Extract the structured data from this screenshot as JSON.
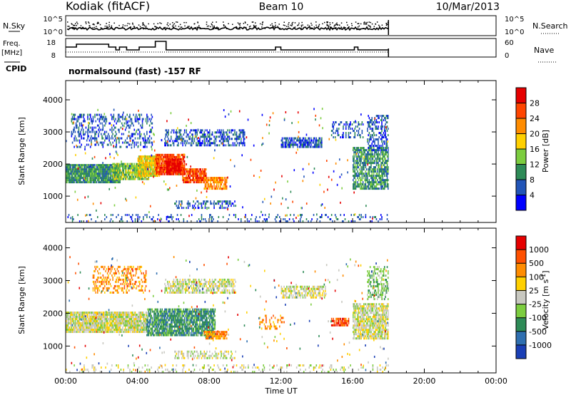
{
  "header": {
    "station": "Kodiak (fitACF)",
    "beam": "Beam 10",
    "date": "10/Mar/2013"
  },
  "meta_panels": {
    "nsky_label": "N.Sky",
    "nsearch_label": "N.Search",
    "noise_ticks_left": [
      "10^5",
      "10^0"
    ],
    "noise_ticks_right": [
      "10^5",
      "10^0"
    ],
    "freq_label_1": "Freq.",
    "freq_label_2": "[MHz]",
    "freq_ticks": [
      "18",
      "8"
    ],
    "nave_label": "Nave",
    "nave_ticks": [
      "60",
      "0"
    ],
    "cpid_label": "CPID",
    "cpid_text": "normalsound (fast) -157 RF"
  },
  "chart_data": [
    {
      "type": "heatmap",
      "name": "power",
      "ylabel": "Slant Range [km]",
      "xlabel": "Time UT",
      "x_ticks": [
        "00:00",
        "04:00",
        "08:00",
        "12:00",
        "16:00",
        "20:00",
        "00:00"
      ],
      "xlim_hours": [
        0,
        24
      ],
      "y_ticks": [
        "1000",
        "2000",
        "3000",
        "4000"
      ],
      "ylim_km": [
        180,
        4600
      ],
      "data_end_hours": 18,
      "colorbar_label": "Power [dB]",
      "colorbar_ticks": [
        "4",
        "8",
        "12",
        "16",
        "20",
        "24",
        "28"
      ],
      "colorbar_range": [
        0,
        32
      ],
      "colors": [
        "#0000ff",
        "#2255b8",
        "#2e8b57",
        "#7ccd3f",
        "#ffd000",
        "#ff8c00",
        "#ff4500",
        "#e60000"
      ],
      "regions": [
        {
          "t0": 0.0,
          "t1": 3.0,
          "r0": 1400,
          "r1": 1950,
          "level": 2,
          "density": 0.95
        },
        {
          "t0": 2.6,
          "t1": 4.6,
          "r0": 1500,
          "r1": 2000,
          "level": 3,
          "density": 0.85
        },
        {
          "t0": 4.0,
          "t1": 5.2,
          "r0": 1600,
          "r1": 2200,
          "level": 4,
          "density": 0.9
        },
        {
          "t0": 5.0,
          "t1": 6.6,
          "r0": 1650,
          "r1": 2250,
          "level": 6,
          "density": 0.92
        },
        {
          "t0": 5.6,
          "t1": 6.4,
          "r0": 1700,
          "r1": 2100,
          "level": 7,
          "density": 0.85
        },
        {
          "t0": 6.5,
          "t1": 7.8,
          "r0": 1400,
          "r1": 1850,
          "level": 6,
          "density": 0.88
        },
        {
          "t0": 7.7,
          "t1": 9.0,
          "r0": 1200,
          "r1": 1550,
          "level": 5,
          "density": 0.8
        },
        {
          "t0": 0.3,
          "t1": 4.8,
          "r0": 2500,
          "r1": 3500,
          "level": 1,
          "density": 0.28
        },
        {
          "t0": 5.5,
          "t1": 10.0,
          "r0": 2550,
          "r1": 3050,
          "level": 1,
          "density": 0.45
        },
        {
          "t0": 12.0,
          "t1": 14.3,
          "r0": 2500,
          "r1": 2800,
          "level": 1,
          "density": 0.65
        },
        {
          "t0": 14.8,
          "t1": 16.6,
          "r0": 2800,
          "r1": 3300,
          "level": 1,
          "density": 0.28
        },
        {
          "t0": 16.0,
          "t1": 18.0,
          "r0": 1200,
          "r1": 2500,
          "level": 2,
          "density": 0.7
        },
        {
          "t0": 16.8,
          "t1": 18.0,
          "r0": 2400,
          "r1": 3500,
          "level": 1,
          "density": 0.45
        },
        {
          "t0": 6.0,
          "t1": 9.5,
          "r0": 600,
          "r1": 800,
          "level": 1,
          "density": 0.35
        },
        {
          "t0": 0.0,
          "t1": 18.0,
          "r0": 180,
          "r1": 420,
          "level": 1,
          "density": 0.15
        }
      ]
    },
    {
      "type": "heatmap",
      "name": "velocity",
      "ylabel": "Slant Range [km]",
      "xlabel": "Time UT",
      "x_ticks": [
        "00:00",
        "04:00",
        "08:00",
        "12:00",
        "16:00",
        "20:00",
        "00:00"
      ],
      "xlim_hours": [
        0,
        24
      ],
      "y_ticks": [
        "1000",
        "2000",
        "3000",
        "4000"
      ],
      "ylim_km": [
        180,
        4600
      ],
      "data_end_hours": 18,
      "colorbar_label": "Velocity [m s^-1]",
      "colorbar_ticks": [
        "1000",
        "500",
        "100",
        "25",
        "-25",
        "-100",
        "-500",
        "-1000"
      ],
      "colors": [
        "#1a3fb5",
        "#2f6fb0",
        "#2e8b57",
        "#7ccd3f",
        "#c8c8c0",
        "#ffd000",
        "#ff8c00",
        "#ff5000",
        "#e60000"
      ],
      "regions": [
        {
          "t0": 0.0,
          "t1": 4.5,
          "r0": 1400,
          "r1": 2000,
          "level": 4,
          "density": 0.9
        },
        {
          "t0": 4.5,
          "t1": 8.3,
          "r0": 1300,
          "r1": 2100,
          "level": 2,
          "density": 0.8
        },
        {
          "t0": 7.7,
          "t1": 9.0,
          "r0": 1200,
          "r1": 1450,
          "level": 6,
          "density": 0.75
        },
        {
          "t0": 1.5,
          "t1": 4.5,
          "r0": 2600,
          "r1": 3400,
          "level": 6,
          "density": 0.3
        },
        {
          "t0": 5.5,
          "t1": 9.5,
          "r0": 2600,
          "r1": 3000,
          "level": 4,
          "density": 0.55
        },
        {
          "t0": 12.0,
          "t1": 14.5,
          "r0": 2450,
          "r1": 2800,
          "level": 4,
          "density": 0.6
        },
        {
          "t0": 16.0,
          "t1": 18.0,
          "r0": 1200,
          "r1": 2300,
          "level": 4,
          "density": 0.75
        },
        {
          "t0": 16.8,
          "t1": 18.0,
          "r0": 2400,
          "r1": 3400,
          "level": 3,
          "density": 0.45
        },
        {
          "t0": 14.8,
          "t1": 15.8,
          "r0": 1600,
          "r1": 1850,
          "level": 7,
          "density": 0.7
        },
        {
          "t0": 10.8,
          "t1": 12.2,
          "r0": 1500,
          "r1": 1900,
          "level": 6,
          "density": 0.3
        },
        {
          "t0": 6.0,
          "t1": 9.5,
          "r0": 600,
          "r1": 800,
          "level": 4,
          "density": 0.35
        },
        {
          "t0": 0.0,
          "t1": 18.0,
          "r0": 180,
          "r1": 420,
          "level": 4,
          "density": 0.15
        }
      ]
    }
  ]
}
